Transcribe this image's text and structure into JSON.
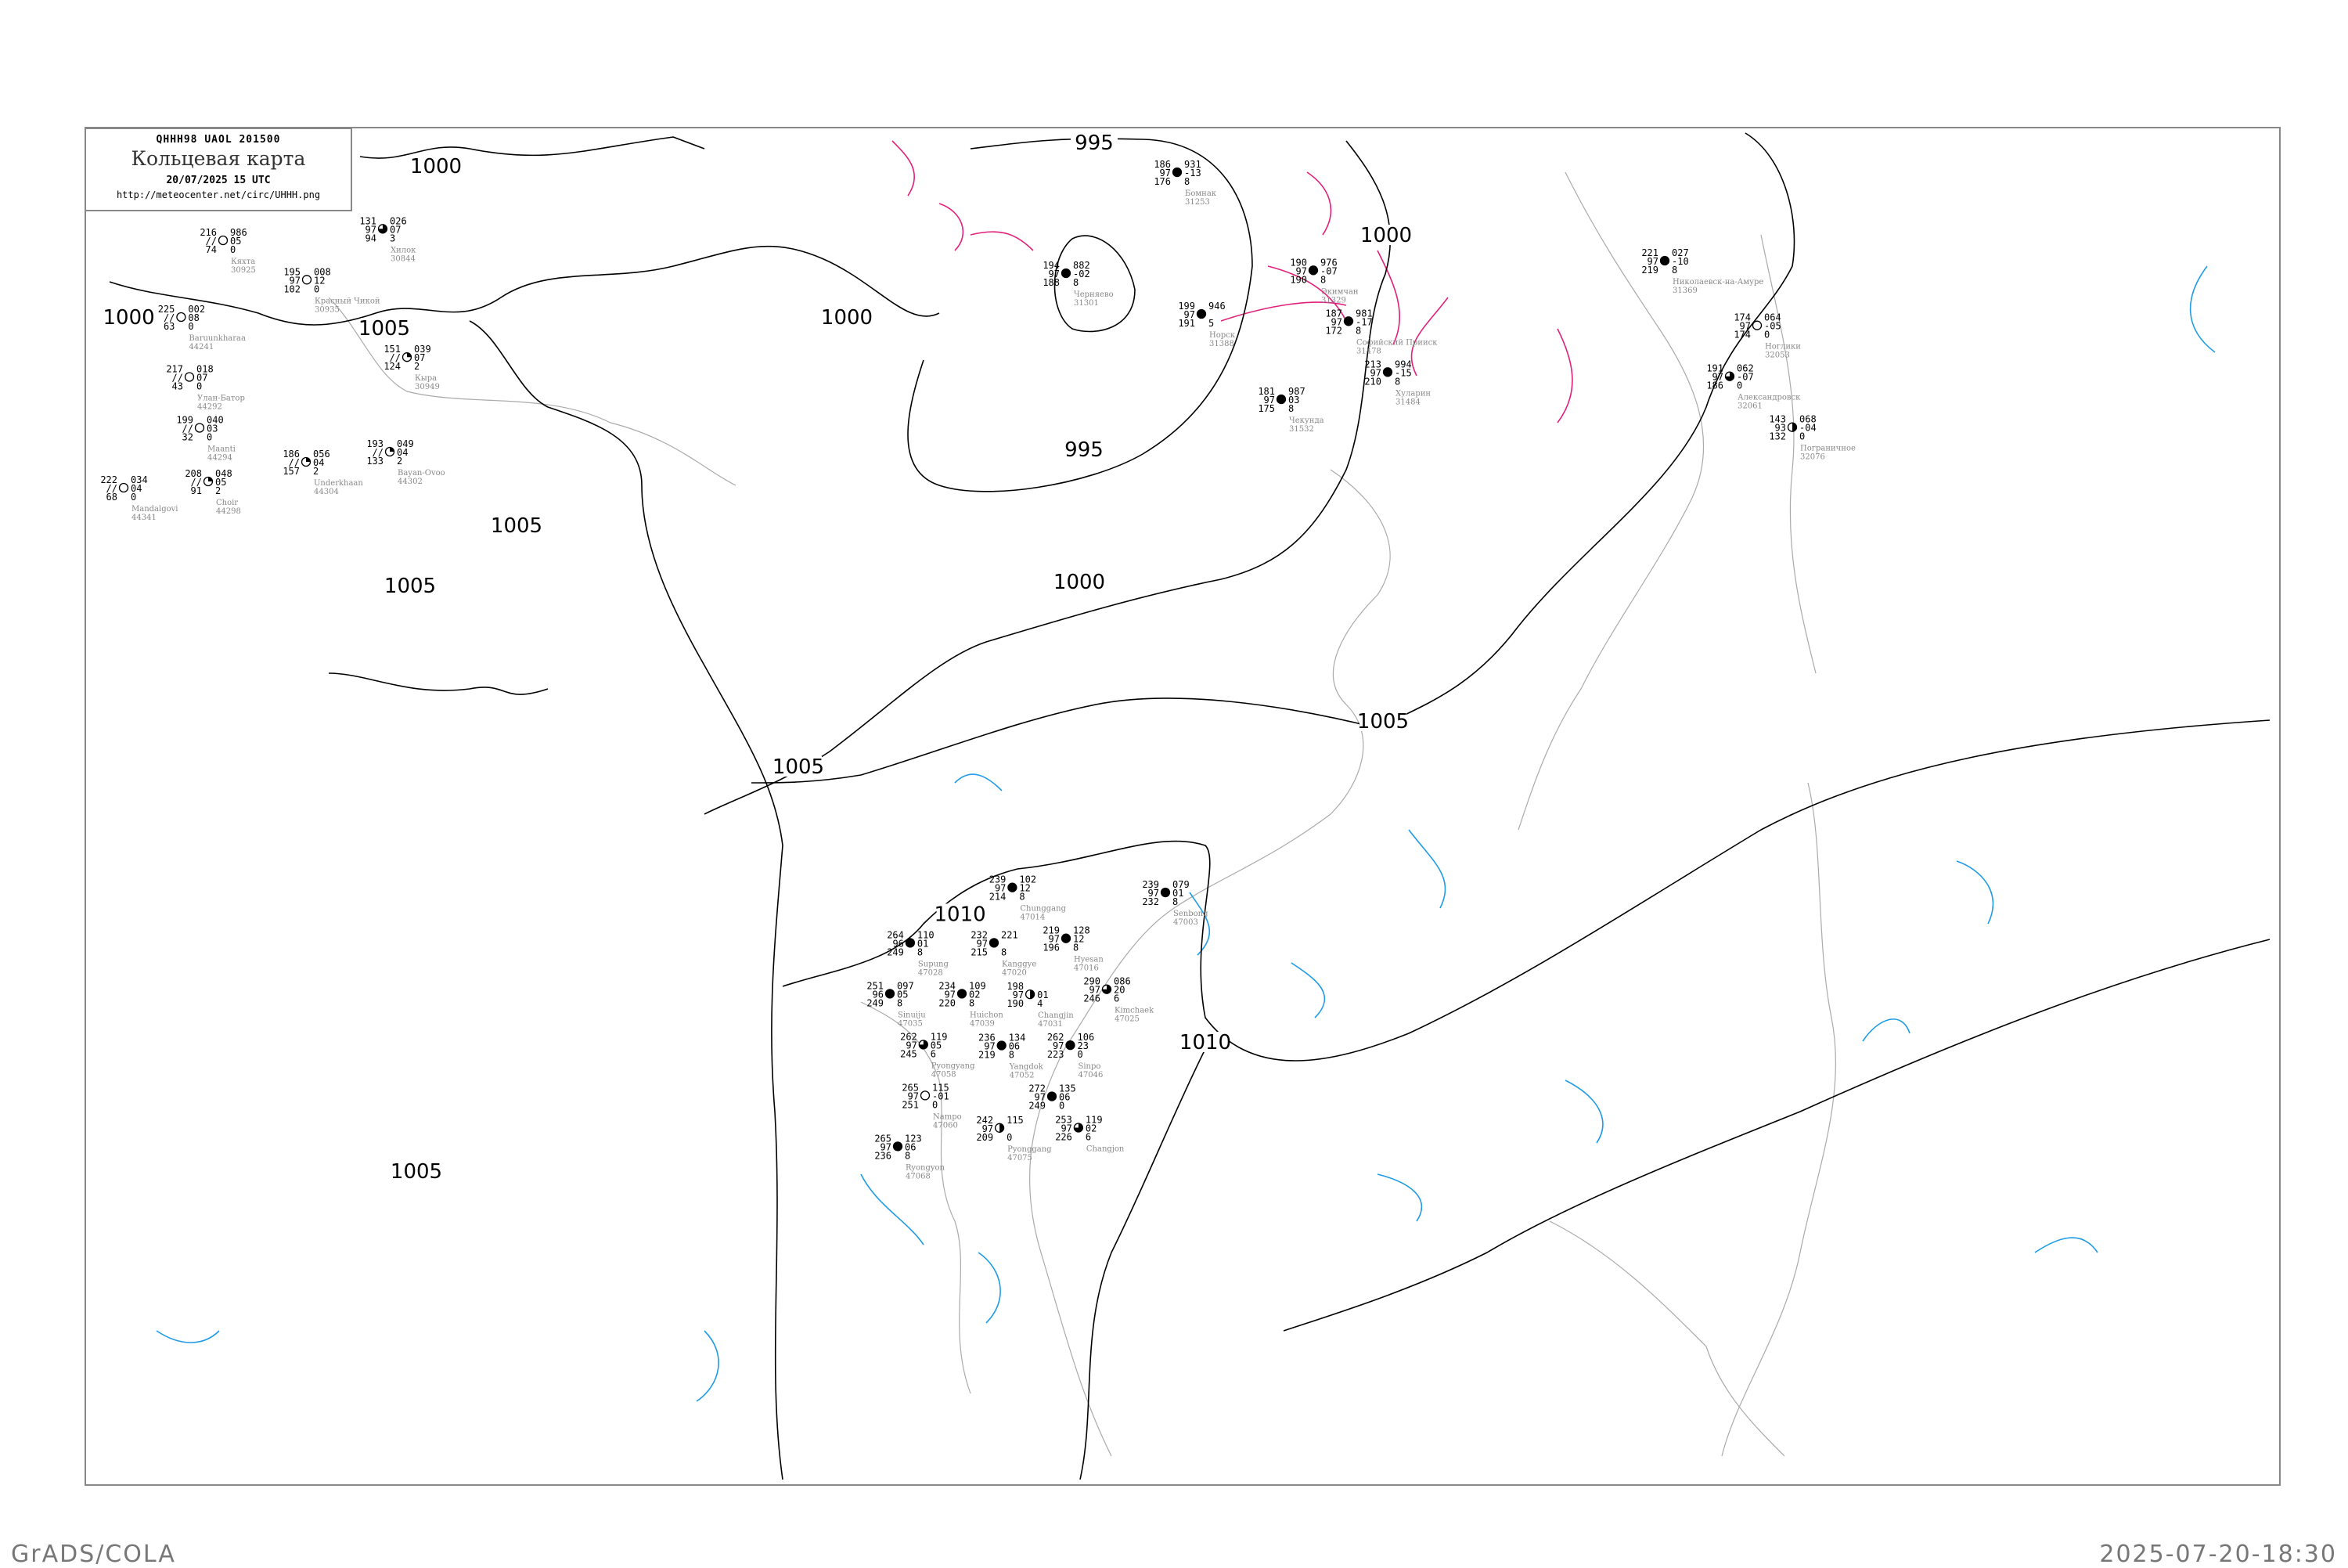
{
  "title_box": {
    "code": "QHHH98  UAOL  201500",
    "title": "Кольцевая карта",
    "datetime": "20/07/2025 15 UTC",
    "url": "http://meteocenter.net/circ/UHHH.png"
  },
  "footer": {
    "left": "GrADS/COLA",
    "right": "2025-07-20-18:30"
  },
  "colors": {
    "isobar": "#000000",
    "coast": "#aaaaaa",
    "negative_tendency": "#1e9be6",
    "positive_tendency": "#e0207a",
    "precip_green": "#22cc44",
    "marker_red": "#ee3355",
    "marker_yellow": "#ffff66"
  },
  "isobar_labels": [
    "1000",
    "1000",
    "1005",
    "1005",
    "1005",
    "1000",
    "995",
    "995",
    "1000",
    "1000",
    "1005",
    "1005",
    "1010",
    "1010",
    "1005"
  ],
  "stations": [
    {
      "name": "Кяхта",
      "id": "30925",
      "t": "216",
      "vv": "//",
      "td": "74",
      "p": "986",
      "dp": "05",
      "ex": "0",
      "cloud": 0
    },
    {
      "name": "Красный Чикой",
      "id": "30935",
      "t": "195",
      "vv": "97",
      "td": "102",
      "p": "008",
      "dp": "12",
      "ex": "0",
      "cloud": 0
    },
    {
      "name": "Хилок",
      "id": "30844",
      "t": "131",
      "vv": "97",
      "td": "94",
      "p": "026",
      "dp": "07",
      "ex": "3",
      "cloud": 0.75
    },
    {
      "name": "Baruunkharaa",
      "id": "44241",
      "t": "225",
      "vv": "//",
      "td": "63",
      "p": "002",
      "dp": "08",
      "ex": "0",
      "cloud": 0
    },
    {
      "name": "Улан-Батор",
      "id": "44292",
      "t": "217",
      "vv": "//",
      "td": "43",
      "p": "018",
      "dp": "07",
      "ex": "0",
      "cloud": 0
    },
    {
      "name": "Maanti",
      "id": "44294",
      "t": "199",
      "vv": "//",
      "td": "32",
      "p": "040",
      "dp": "03",
      "ex": "0",
      "cloud": 0
    },
    {
      "name": "Mandalgovi",
      "id": "44341",
      "t": "222",
      "vv": "//",
      "td": "68",
      "p": "034",
      "dp": "04",
      "ex": "0",
      "cloud": 0
    },
    {
      "name": "Choir",
      "id": "44298",
      "t": "208",
      "vv": "//",
      "td": "91",
      "p": "048",
      "dp": "05",
      "ex": "2",
      "cloud": 0.25
    },
    {
      "name": "Underkhaan",
      "id": "44304",
      "t": "186",
      "vv": "//",
      "td": "157",
      "p": "056",
      "dp": "04",
      "ex": "2",
      "cloud": 0.25
    },
    {
      "name": "Bayan-Ovoo",
      "id": "44302",
      "t": "193",
      "vv": "//",
      "td": "133",
      "p": "049",
      "dp": "04",
      "ex": "2",
      "cloud": 0.25
    },
    {
      "name": "Кыра",
      "id": "30949",
      "t": "151",
      "vv": "//",
      "td": "124",
      "p": "039",
      "dp": "07",
      "ex": "2",
      "cloud": 0.25
    },
    {
      "name": "Николаевск-на-Амуре",
      "id": "31369",
      "t": "221",
      "vv": "97",
      "td": "219",
      "p": "027",
      "dp": "-10",
      "ex": "8",
      "cloud": 1
    },
    {
      "name": "Ноглики",
      "id": "32053",
      "t": "174",
      "vv": "97",
      "td": "174",
      "p": "064",
      "dp": "-05",
      "ex": "0",
      "cloud": 0
    },
    {
      "name": "Александровск",
      "id": "32061",
      "t": "191",
      "vv": "97",
      "td": "186",
      "p": "062",
      "dp": "-07",
      "ex": "0",
      "cloud": 0.75
    },
    {
      "name": "Пограничное",
      "id": "32076",
      "t": "143",
      "vv": "93",
      "td": "132",
      "p": "068",
      "dp": "-04",
      "ex": "0",
      "cloud": 0.5
    },
    {
      "name": "Бомнак",
      "id": "31253",
      "t": "186",
      "vv": "97",
      "td": "176",
      "p": "931",
      "dp": "-13",
      "ex": "8",
      "cloud": 1
    },
    {
      "name": "Черняево",
      "id": "31301",
      "t": "194",
      "vv": "97",
      "td": "188",
      "p": "882",
      "dp": "-02",
      "ex": "8",
      "cloud": 1
    },
    {
      "name": "Норск",
      "id": "31388",
      "t": "199",
      "vv": "97",
      "td": "191",
      "p": "946",
      "dp": "",
      "ex": "5",
      "cloud": 1
    },
    {
      "name": "Экимчан",
      "id": "31329",
      "t": "190",
      "vv": "97",
      "td": "190",
      "p": "976",
      "dp": "-07",
      "ex": "8",
      "cloud": 1
    },
    {
      "name": "Софийский Прииск",
      "id": "31478",
      "t": "187",
      "vv": "97",
      "td": "172",
      "p": "981",
      "dp": "-17",
      "ex": "8",
      "cloud": 1
    },
    {
      "name": "Хуларин",
      "id": "31484",
      "t": "213",
      "vv": "97",
      "td": "210",
      "p": "994",
      "dp": "-15",
      "ex": "8",
      "cloud": 1
    },
    {
      "name": "Чекунда",
      "id": "31532",
      "t": "181",
      "vv": "97",
      "td": "175",
      "p": "987",
      "dp": "03",
      "ex": "8",
      "cloud": 1
    },
    {
      "name": "Chunggang",
      "id": "47014",
      "t": "239",
      "vv": "97",
      "td": "214",
      "p": "102",
      "dp": "12",
      "ex": "8",
      "cloud": 1
    },
    {
      "name": "Hyesan",
      "id": "47016",
      "t": "219",
      "vv": "97",
      "td": "196",
      "p": "128",
      "dp": "12",
      "ex": "8",
      "cloud": 1
    },
    {
      "name": "Kanggye",
      "id": "47020",
      "t": "232",
      "vv": "97",
      "td": "215",
      "p": "221",
      "dp": "",
      "ex": "8",
      "cloud": 1
    },
    {
      "name": "Supung",
      "id": "47028",
      "t": "264",
      "vv": "96",
      "td": "249",
      "p": "110",
      "dp": "01",
      "ex": "8",
      "cloud": 1
    },
    {
      "name": "Sinuiju",
      "id": "47035",
      "t": "251",
      "vv": "96",
      "td": "249",
      "p": "097",
      "dp": "05",
      "ex": "8",
      "cloud": 1
    },
    {
      "name": "Huichon",
      "id": "47039",
      "t": "234",
      "vv": "97",
      "td": "220",
      "p": "109",
      "dp": "02",
      "ex": "8",
      "cloud": 1
    },
    {
      "name": "Changjin",
      "id": "47031",
      "t": "198",
      "vv": "97",
      "td": "190",
      "p": "",
      "dp": "01",
      "ex": "4",
      "cloud": 0.5
    },
    {
      "name": "Kimchaek",
      "id": "47025",
      "t": "290",
      "vv": "97",
      "td": "246",
      "p": "086",
      "dp": "20",
      "ex": "6",
      "cloud": 0.75
    },
    {
      "name": "Senbong",
      "id": "47003",
      "t": "239",
      "vv": "97",
      "td": "232",
      "p": "079",
      "dp": "01",
      "ex": "8",
      "cloud": 1
    },
    {
      "name": "Sinpo",
      "id": "47046",
      "t": "262",
      "vv": "97",
      "td": "223",
      "p": "106",
      "dp": "23",
      "ex": "0",
      "cloud": 1
    },
    {
      "name": "Yangdok",
      "id": "47052",
      "t": "236",
      "vv": "97",
      "td": "219",
      "p": "134",
      "dp": "06",
      "ex": "8",
      "cloud": 1
    },
    {
      "name": "Pyongyang",
      "id": "47058",
      "t": "262",
      "vv": "97",
      "td": "245",
      "p": "119",
      "dp": "05",
      "ex": "6",
      "cloud": 0.75
    },
    {
      "name": "Nampo",
      "id": "47060",
      "t": "265",
      "vv": "97",
      "td": "251",
      "p": "115",
      "dp": "-01",
      "ex": "0",
      "cloud": 0
    },
    {
      "name": "Ryongyon",
      "id": "47068",
      "t": "265",
      "vv": "97",
      "td": "236",
      "p": "123",
      "dp": "06",
      "ex": "8",
      "cloud": 1
    },
    {
      "name": "Pyonggang",
      "id": "47075",
      "t": "242",
      "vv": "97",
      "td": "209",
      "p": "115",
      "dp": "",
      "ex": "0",
      "cloud": 0.5
    },
    {
      "name": "",
      "id": "",
      "t": "272",
      "vv": "97",
      "td": "249",
      "p": "135",
      "dp": "06",
      "ex": "0",
      "cloud": 1
    },
    {
      "name": "Changjon",
      "id": "",
      "t": "253",
      "vv": "97",
      "td": "226",
      "p": "119",
      "dp": "02",
      "ex": "6",
      "cloud": 0.75
    }
  ]
}
